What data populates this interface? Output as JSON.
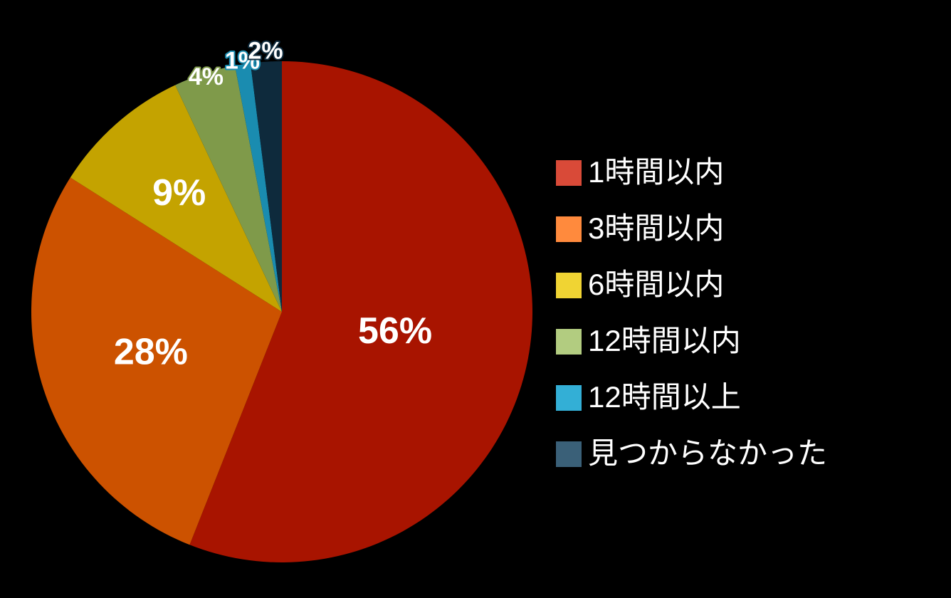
{
  "chart_data": {
    "type": "pie",
    "categories": [
      "1時間以内",
      "3時間以内",
      "6時間以内",
      "12時間以内",
      "12時間以上",
      "見つからなかった"
    ],
    "values": [
      56,
      28,
      9,
      4,
      1,
      2
    ],
    "value_labels": [
      "56%",
      "28%",
      "9%",
      "4%",
      "1%",
      "2%"
    ],
    "colors": [
      "#a81400",
      "#cc5200",
      "#c4a300",
      "#7f9a4a",
      "#1a8cb0",
      "#0e2a3c"
    ],
    "legend_colors": [
      "#d94a38",
      "#ff8a3d",
      "#f0d433",
      "#b2cc80",
      "#33afd6",
      "#3a6078"
    ],
    "legend": "right"
  }
}
